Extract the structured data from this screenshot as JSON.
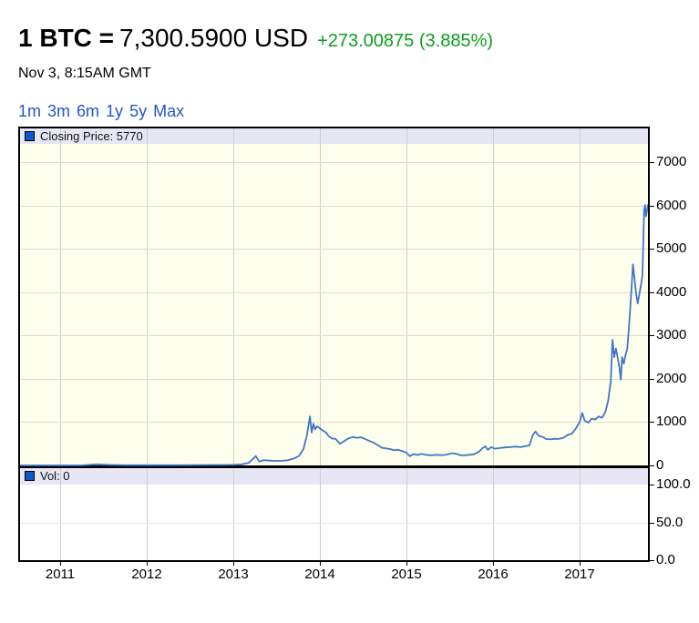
{
  "header": {
    "pair_label": "1 BTC =",
    "price": "7,300.5900 USD",
    "change": "+273.00875 (3.885%)",
    "timestamp": "Nov 3, 8:15AM GMT"
  },
  "range_links": [
    "1m",
    "3m",
    "6m",
    "1y",
    "5y",
    "Max"
  ],
  "colors": {
    "change_green": "#0F9D1F",
    "link_blue": "#2255CC",
    "line_blue": "#4176C5",
    "legend_swatch_blue": "#1155CC",
    "plot_bg_yellow": "#FFFFEE",
    "strip_lavender": "#E6E6F4",
    "grid_vertical": "#C9D1C9",
    "grid_horizontal_price": "#DCDCCE",
    "grid_horizontal_vol": "#E3E3E3",
    "divider_black": "#000000"
  },
  "chart_data": {
    "type": "line",
    "title": "BTC/USD closing price",
    "legend_price": "Closing Price: 5770",
    "legend_volume": "Vol: 0",
    "x_axis": {
      "range": [
        2010.537,
        2017.789
      ],
      "ticks": [
        {
          "value": 2011,
          "label": "2011"
        },
        {
          "value": 2012,
          "label": "2012"
        },
        {
          "value": 2013,
          "label": "2013"
        },
        {
          "value": 2014,
          "label": "2014"
        },
        {
          "value": 2015,
          "label": "2015"
        },
        {
          "value": 2016,
          "label": "2016"
        },
        {
          "value": 2017,
          "label": "2017"
        }
      ]
    },
    "price_axis": {
      "range": [
        0,
        7421
      ],
      "ticks": [
        {
          "value": 0,
          "label": "0"
        },
        {
          "value": 1000,
          "label": "1000"
        },
        {
          "value": 2000,
          "label": "2000"
        },
        {
          "value": 3000,
          "label": "3000"
        },
        {
          "value": 4000,
          "label": "4000"
        },
        {
          "value": 5000,
          "label": "5000"
        },
        {
          "value": 6000,
          "label": "6000"
        },
        {
          "value": 7000,
          "label": "7000"
        }
      ]
    },
    "volume_axis": {
      "range": [
        0,
        100
      ],
      "ticks": [
        {
          "value": 0,
          "label": "0.0"
        },
        {
          "value": 50,
          "label": "50.0"
        },
        {
          "value": 100,
          "label": "100.0"
        }
      ]
    },
    "series": [
      {
        "name": "Closing Price",
        "points": [
          [
            2010.54,
            0
          ],
          [
            2010.8,
            0
          ],
          [
            2011.0,
            1
          ],
          [
            2011.25,
            1
          ],
          [
            2011.42,
            25
          ],
          [
            2011.5,
            17
          ],
          [
            2011.6,
            11
          ],
          [
            2011.75,
            5
          ],
          [
            2012.0,
            5
          ],
          [
            2012.3,
            5
          ],
          [
            2012.6,
            9
          ],
          [
            2012.85,
            11
          ],
          [
            2013.0,
            13
          ],
          [
            2013.1,
            25
          ],
          [
            2013.18,
            60
          ],
          [
            2013.26,
            215
          ],
          [
            2013.3,
            90
          ],
          [
            2013.35,
            120
          ],
          [
            2013.45,
            110
          ],
          [
            2013.55,
            105
          ],
          [
            2013.63,
            120
          ],
          [
            2013.7,
            160
          ],
          [
            2013.76,
            220
          ],
          [
            2013.81,
            380
          ],
          [
            2013.85,
            700
          ],
          [
            2013.885,
            1130
          ],
          [
            2013.905,
            760
          ],
          [
            2013.925,
            960
          ],
          [
            2013.945,
            830
          ],
          [
            2013.965,
            900
          ],
          [
            2013.99,
            870
          ],
          [
            2014.03,
            810
          ],
          [
            2014.07,
            760
          ],
          [
            2014.1,
            680
          ],
          [
            2014.14,
            620
          ],
          [
            2014.18,
            615
          ],
          [
            2014.23,
            500
          ],
          [
            2014.28,
            560
          ],
          [
            2014.33,
            625
          ],
          [
            2014.38,
            655
          ],
          [
            2014.43,
            640
          ],
          [
            2014.48,
            648
          ],
          [
            2014.52,
            612
          ],
          [
            2014.57,
            565
          ],
          [
            2014.62,
            525
          ],
          [
            2014.67,
            465
          ],
          [
            2014.72,
            405
          ],
          [
            2014.77,
            392
          ],
          [
            2014.82,
            372
          ],
          [
            2014.86,
            348
          ],
          [
            2014.9,
            362
          ],
          [
            2014.95,
            332
          ],
          [
            2015.0,
            292
          ],
          [
            2015.04,
            212
          ],
          [
            2015.08,
            262
          ],
          [
            2015.13,
            242
          ],
          [
            2015.17,
            266
          ],
          [
            2015.22,
            246
          ],
          [
            2015.28,
            236
          ],
          [
            2015.35,
            246
          ],
          [
            2015.42,
            236
          ],
          [
            2015.48,
            256
          ],
          [
            2015.53,
            282
          ],
          [
            2015.58,
            266
          ],
          [
            2015.63,
            232
          ],
          [
            2015.68,
            236
          ],
          [
            2015.73,
            246
          ],
          [
            2015.78,
            256
          ],
          [
            2015.84,
            322
          ],
          [
            2015.88,
            402
          ],
          [
            2015.91,
            442
          ],
          [
            2015.94,
            362
          ],
          [
            2015.98,
            422
          ],
          [
            2016.02,
            386
          ],
          [
            2016.08,
            402
          ],
          [
            2016.14,
            416
          ],
          [
            2016.2,
            422
          ],
          [
            2016.26,
            436
          ],
          [
            2016.32,
            422
          ],
          [
            2016.38,
            446
          ],
          [
            2016.42,
            462
          ],
          [
            2016.46,
            702
          ],
          [
            2016.49,
            782
          ],
          [
            2016.53,
            672
          ],
          [
            2016.57,
            662
          ],
          [
            2016.61,
            612
          ],
          [
            2016.66,
            602
          ],
          [
            2016.71,
            616
          ],
          [
            2016.76,
            612
          ],
          [
            2016.81,
            636
          ],
          [
            2016.86,
            702
          ],
          [
            2016.91,
            732
          ],
          [
            2016.96,
            862
          ],
          [
            2017.0,
            1000
          ],
          [
            2017.03,
            1210
          ],
          [
            2017.06,
            1030
          ],
          [
            2017.1,
            990
          ],
          [
            2017.14,
            1080
          ],
          [
            2017.18,
            1060
          ],
          [
            2017.22,
            1130
          ],
          [
            2017.26,
            1100
          ],
          [
            2017.3,
            1250
          ],
          [
            2017.33,
            1500
          ],
          [
            2017.36,
            1950
          ],
          [
            2017.38,
            2900
          ],
          [
            2017.4,
            2500
          ],
          [
            2017.42,
            2700
          ],
          [
            2017.44,
            2480
          ],
          [
            2017.46,
            2250
          ],
          [
            2017.475,
            1980
          ],
          [
            2017.49,
            2500
          ],
          [
            2017.51,
            2350
          ],
          [
            2017.53,
            2550
          ],
          [
            2017.55,
            2700
          ],
          [
            2017.57,
            3200
          ],
          [
            2017.6,
            4100
          ],
          [
            2017.615,
            4640
          ],
          [
            2017.63,
            4380
          ],
          [
            2017.65,
            4000
          ],
          [
            2017.67,
            3740
          ],
          [
            2017.69,
            3960
          ],
          [
            2017.71,
            4180
          ],
          [
            2017.725,
            4380
          ],
          [
            2017.745,
            5900
          ],
          [
            2017.755,
            6010
          ],
          [
            2017.765,
            5750
          ],
          [
            2017.775,
            5850
          ],
          [
            2017.788,
            6010
          ]
        ]
      }
    ],
    "volume_series": {
      "name": "Vol",
      "values_all_zero": true
    }
  }
}
